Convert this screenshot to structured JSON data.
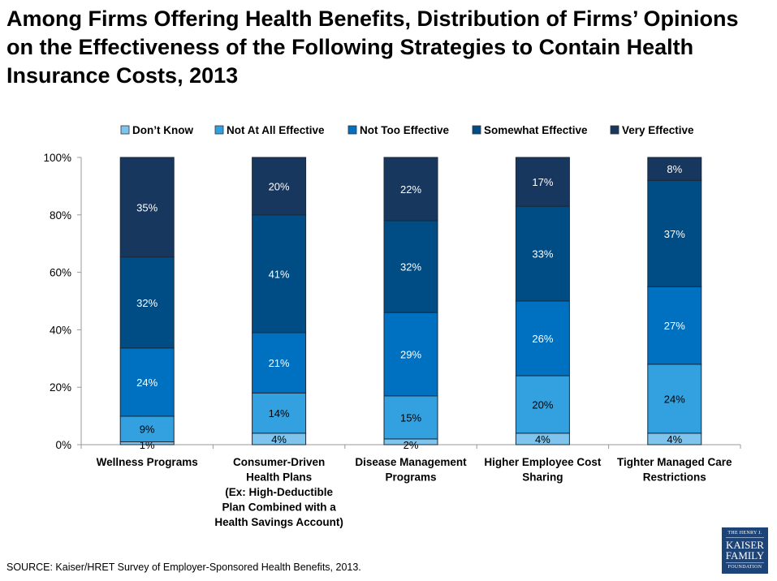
{
  "chart_data": {
    "type": "bar",
    "stacked": true,
    "title": "Among Firms Offering Health Benefits, Distribution of Firms’ Opinions on the Effectiveness of the Following Strategies to Contain Health Insurance Costs, 2013",
    "categories": [
      [
        "Wellness Programs"
      ],
      [
        "Consumer-Driven",
        "Health Plans",
        "(Ex: High-Deductible",
        "Plan Combined with a",
        "Health Savings Account)"
      ],
      [
        "Disease Management",
        "Programs"
      ],
      [
        "Higher Employee Cost",
        "Sharing"
      ],
      [
        "Tighter Managed Care",
        "Restrictions"
      ]
    ],
    "series": [
      {
        "name": "Don’t Know",
        "color": "#7FC4EC",
        "label_color": "#000000",
        "values": [
          1,
          4,
          2,
          4,
          4
        ]
      },
      {
        "name": "Not At All Effective",
        "color": "#33A1DF",
        "label_color": "#000000",
        "values": [
          9,
          14,
          15,
          20,
          24
        ]
      },
      {
        "name": "Not Too Effective",
        "color": "#0070C0",
        "label_color": "#FFFFFF",
        "values": [
          24,
          21,
          29,
          26,
          27
        ]
      },
      {
        "name": "Somewhat Effective",
        "color": "#004C85",
        "label_color": "#FFFFFF",
        "values": [
          32,
          41,
          32,
          33,
          37
        ]
      },
      {
        "name": "Very Effective",
        "color": "#17375E",
        "label_color": "#FFFFFF",
        "values": [
          35,
          20,
          22,
          17,
          8
        ]
      }
    ],
    "ylim": [
      0,
      100
    ],
    "yticks": [
      "0%",
      "20%",
      "40%",
      "60%",
      "80%",
      "100%"
    ],
    "legend_position": "top",
    "grid": false
  },
  "source": "SOURCE: Kaiser/HRET Survey of Employer-Sponsored Health Benefits, 2013.",
  "logo": {
    "line1": "THE HENRY J.",
    "line2": "KAISER",
    "line3": "FAMILY",
    "line4": "FOUNDATION"
  }
}
